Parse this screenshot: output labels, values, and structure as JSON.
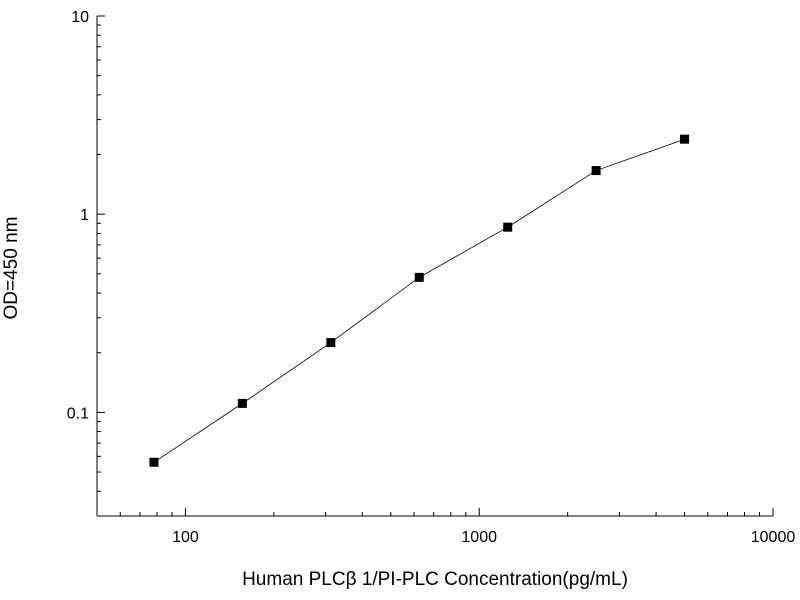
{
  "chart_data": {
    "type": "line",
    "title": "",
    "xlabel": "Human PLCβ 1/PI-PLC Concentration(pg/mL)",
    "ylabel": "OD=450 nm",
    "xscale": "log",
    "yscale": "log",
    "xlim": [
      50,
      10000
    ],
    "ylim": [
      0.03,
      10
    ],
    "xticks": [
      {
        "value": 100,
        "label": "100"
      },
      {
        "value": 1000,
        "label": "1000"
      },
      {
        "value": 10000,
        "label": "10000"
      }
    ],
    "yticks": [
      {
        "value": 0.1,
        "label": "0.1"
      },
      {
        "value": 1,
        "label": "1"
      },
      {
        "value": 10,
        "label": "10"
      }
    ],
    "grid": false,
    "legend": "none",
    "marker": "square",
    "color": "#000000",
    "series": [
      {
        "x": [
          78.125,
          156.25,
          312.5,
          625,
          1250,
          2500,
          5000
        ],
        "y": [
          0.056,
          0.111,
          0.225,
          0.48,
          0.86,
          1.66,
          2.39
        ]
      }
    ]
  }
}
